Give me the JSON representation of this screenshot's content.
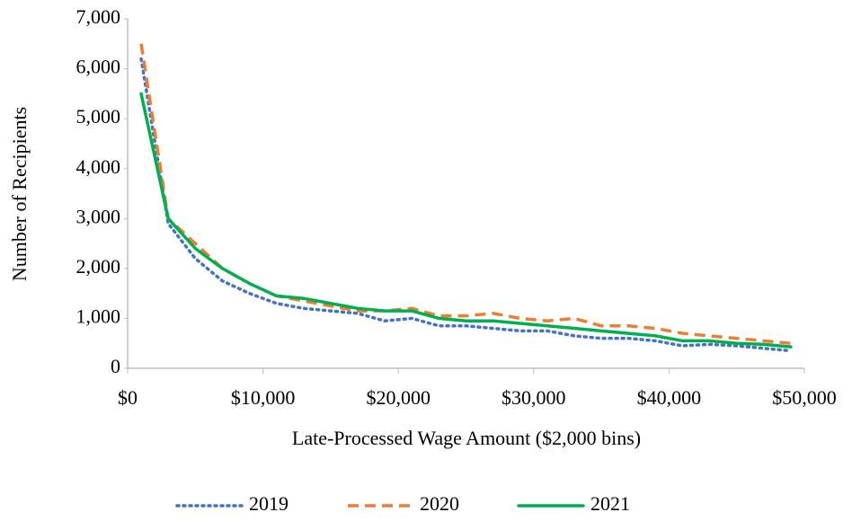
{
  "chart_data": {
    "type": "line",
    "x_label": "Late-Processed Wage Amount ($2,000 bins)",
    "y_label": "Number of Recipients",
    "x": [
      1000,
      3000,
      5000,
      7000,
      9000,
      11000,
      13000,
      15000,
      17000,
      19000,
      21000,
      23000,
      25000,
      27000,
      29000,
      31000,
      33000,
      35000,
      37000,
      39000,
      41000,
      43000,
      45000,
      47000,
      49000
    ],
    "series": [
      {
        "name": "2019",
        "color": "#4472c4",
        "style": "dotted",
        "values": [
          6200,
          2900,
          2200,
          1750,
          1500,
          1300,
          1200,
          1150,
          1100,
          950,
          1000,
          850,
          850,
          800,
          750,
          750,
          650,
          600,
          600,
          550,
          450,
          480,
          450,
          400,
          350
        ]
      },
      {
        "name": "2020",
        "color": "#ed7d31",
        "style": "dashed",
        "values": [
          6500,
          3000,
          2500,
          2000,
          1700,
          1450,
          1350,
          1250,
          1150,
          1150,
          1200,
          1050,
          1050,
          1100,
          1000,
          950,
          1000,
          850,
          850,
          800,
          700,
          650,
          600,
          550,
          500
        ]
      },
      {
        "name": "2021",
        "color": "#00b050",
        "style": "solid",
        "values": [
          5500,
          3000,
          2400,
          2000,
          1700,
          1450,
          1400,
          1300,
          1200,
          1150,
          1150,
          1000,
          950,
          950,
          900,
          850,
          800,
          750,
          700,
          650,
          550,
          550,
          500,
          480,
          430
        ]
      }
    ],
    "xlim": [
      0,
      50000
    ],
    "xticks": [
      {
        "value": 0,
        "label": "$0"
      },
      {
        "value": 10000,
        "label": "$10,000"
      },
      {
        "value": 20000,
        "label": "$20,000"
      },
      {
        "value": 30000,
        "label": "$30,000"
      },
      {
        "value": 40000,
        "label": "$40,000"
      },
      {
        "value": 50000,
        "label": "$50,000"
      }
    ],
    "ylim": [
      0,
      7000
    ],
    "yticks": [
      0,
      {
        "value": 1000,
        "label": "1,000"
      },
      {
        "value": 2000,
        "label": "2,000"
      },
      {
        "value": 3000,
        "label": "3,000"
      },
      {
        "value": 4000,
        "label": "4,000"
      },
      {
        "value": 5000,
        "label": "5,000"
      },
      {
        "value": 6000,
        "label": "6,000"
      },
      {
        "value": 7000,
        "label": "7,000"
      }
    ],
    "grid": false,
    "legend": "bottom"
  }
}
